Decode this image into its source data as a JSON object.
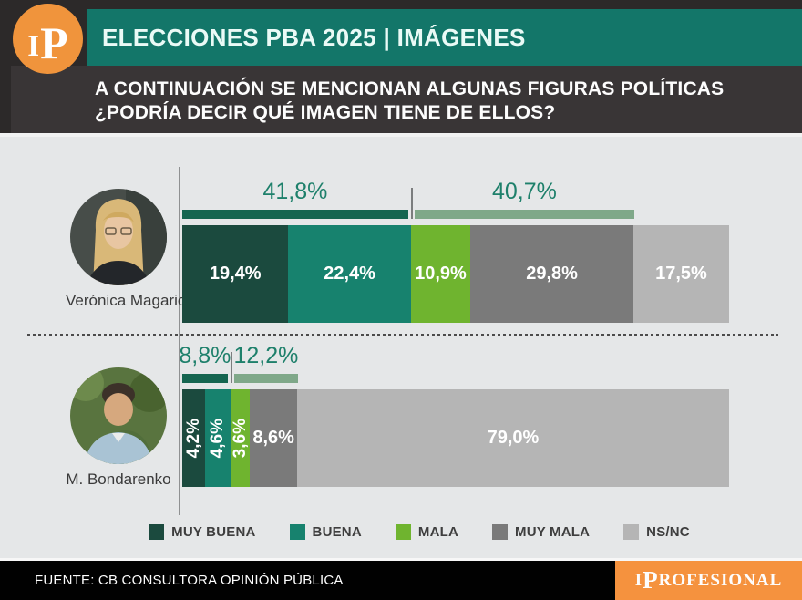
{
  "header": {
    "logo": "IP",
    "title": "ELECCIONES PBA 2025 | IMÁGENES"
  },
  "question": {
    "line1": "A CONTINUACIÓN SE MENCIONAN ALGUNAS FIGURAS POLÍTICAS",
    "line2": "¿PODRÍA DECIR QUÉ IMAGEN TIENE DE ELLOS?"
  },
  "chart_data": {
    "type": "bar",
    "variant": "horizontal-stacked-100",
    "title": "A CONTINUACIÓN SE MENCIONAN ALGUNAS FIGURAS POLÍTICAS ¿PODRÍA DECIR QUÉ IMAGEN TIENE DE ELLOS?",
    "units": "percent",
    "xlim": [
      0,
      100
    ],
    "legend_position": "bottom",
    "categories": [
      "MUY BUENA",
      "BUENA",
      "MALA",
      "MUY MALA",
      "NS/NC"
    ],
    "category_colors": [
      "#1b4a3e",
      "#17826e",
      "#6fb42f",
      "#7a7a7a",
      "#b5b5b5"
    ],
    "summary_colors": {
      "positive": "#156550",
      "negative": "#7fa889"
    },
    "rows": [
      {
        "name": "Verónica Magario",
        "values": [
          19.4,
          22.4,
          10.9,
          29.8,
          17.5
        ],
        "labels": [
          "19,4%",
          "22,4%",
          "10,9%",
          "29,8%",
          "17,5%"
        ],
        "positive_total": 41.8,
        "positive_label": "41,8%",
        "negative_total": 40.7,
        "negative_label": "40,7%"
      },
      {
        "name": "M. Bondarenko",
        "values": [
          4.2,
          4.6,
          3.6,
          8.6,
          79.0
        ],
        "labels": [
          "4,2%",
          "4,6%",
          "3,6%",
          "8,6%",
          "79,0%"
        ],
        "positive_total": 8.8,
        "positive_label": "8,8%",
        "negative_total": 12.2,
        "negative_label": "12,2%"
      }
    ]
  },
  "footer": {
    "source": "FUENTE: CB CONSULTORA OPINIÓN PÚBLICA",
    "brand": "IPROFESIONAL"
  }
}
